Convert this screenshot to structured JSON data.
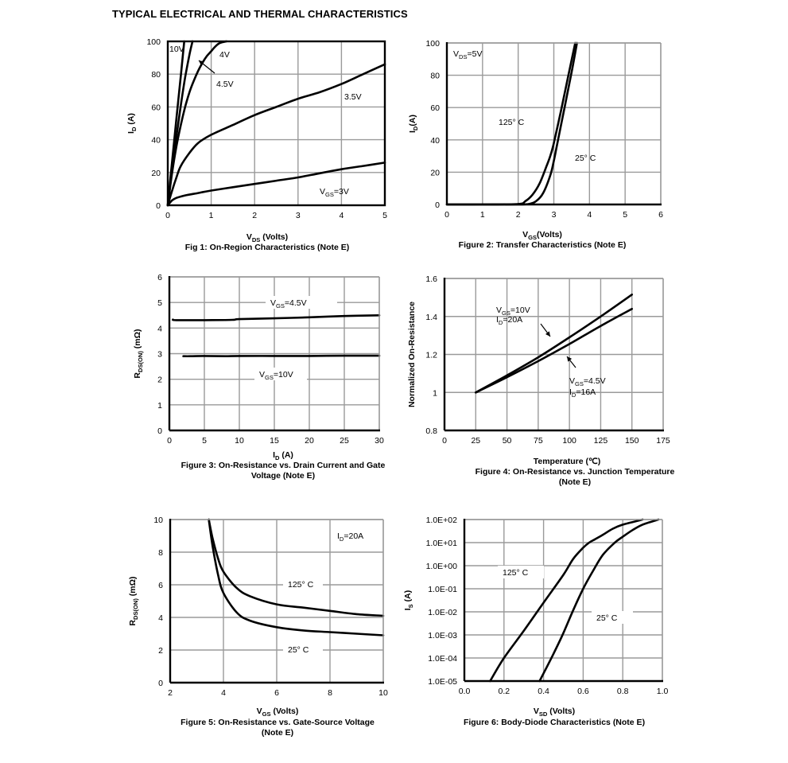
{
  "page": {
    "title": "TYPICAL ELECTRICAL AND THERMAL CHARACTERISTICS"
  },
  "chart_data": [
    {
      "id": "fig1",
      "type": "line",
      "caption": "Fig 1: On-Region Characteristics (Note E)",
      "xlabel": {
        "main": "V",
        "sub": "DS",
        "rest": " (Volts)"
      },
      "ylabel": {
        "main": "I",
        "sub": "D",
        "rest": " (A)"
      },
      "xlim": [
        0,
        5
      ],
      "ylim": [
        0,
        100
      ],
      "xticks": [
        "0",
        "1",
        "2",
        "3",
        "4",
        "5"
      ],
      "yticks": [
        "0",
        "20",
        "40",
        "60",
        "80",
        "100"
      ],
      "series": [
        {
          "name": "10V",
          "x": [
            0,
            0.1,
            0.2,
            0.3,
            0.38
          ],
          "y": [
            0,
            27,
            53,
            79,
            100
          ]
        },
        {
          "name": "4.5V",
          "x": [
            0,
            0.1,
            0.2,
            0.3,
            0.4,
            0.5,
            0.57
          ],
          "y": [
            0,
            22,
            42,
            61,
            78,
            92,
            100
          ]
        },
        {
          "name": "4V",
          "x": [
            0,
            0.1,
            0.2,
            0.3,
            0.4,
            0.5,
            0.6,
            0.7,
            0.8,
            0.9,
            1.0,
            1.1,
            1.2,
            1.35
          ],
          "y": [
            0,
            20,
            36,
            49,
            60,
            69,
            76,
            82,
            87,
            91,
            94,
            97,
            99,
            100.5
          ]
        },
        {
          "name": "3.5V",
          "x": [
            0,
            0.1,
            0.2,
            0.3,
            0.5,
            0.7,
            1.0,
            1.5,
            2.0,
            2.5,
            3.0,
            3.5,
            4.0,
            4.5,
            5.0
          ],
          "y": [
            0,
            9,
            17,
            24,
            32,
            38,
            43,
            49,
            55,
            60,
            65,
            69,
            74,
            80,
            86
          ]
        },
        {
          "name": "VGS=3V",
          "x": [
            0,
            0.1,
            0.2,
            0.4,
            0.7,
            1.0,
            1.5,
            2.0,
            2.5,
            3.0,
            3.5,
            4.0,
            4.5,
            5.0
          ],
          "y": [
            0,
            3,
            4.5,
            6,
            7.5,
            9,
            11,
            13,
            15,
            17,
            19.5,
            22,
            24,
            26
          ]
        }
      ],
      "annotations": [
        {
          "text": "10V"
        },
        {
          "text": "4V"
        },
        {
          "text": "4.5V"
        },
        {
          "text": "3.5V"
        },
        {
          "main": "V",
          "sub": "GS",
          "rest": "=3V"
        }
      ]
    },
    {
      "id": "fig2",
      "type": "line",
      "caption": "Figure 2: Transfer Characteristics (Note E)",
      "xlabel": {
        "main": "V",
        "sub": "GS",
        "rest": "(Volts)"
      },
      "ylabel": {
        "main": "I",
        "sub": "D",
        "rest": "(A)"
      },
      "xlim": [
        0,
        6
      ],
      "ylim": [
        0,
        100
      ],
      "xticks": [
        "0",
        "1",
        "2",
        "3",
        "4",
        "5",
        "6"
      ],
      "yticks": [
        "0",
        "20",
        "40",
        "60",
        "80",
        "100"
      ],
      "series": [
        {
          "name": "125° C",
          "x": [
            0,
            1,
            2.0,
            2.2,
            2.4,
            2.6,
            2.8,
            2.9,
            3.0,
            3.2,
            3.4,
            3.6
          ],
          "y": [
            0,
            0,
            0.3,
            2,
            6,
            13,
            24,
            30,
            38,
            58,
            79,
            100
          ]
        },
        {
          "name": "25° C",
          "x": [
            0,
            1,
            2.0,
            2.3,
            2.5,
            2.7,
            2.9,
            3.0,
            3.1,
            3.3,
            3.5,
            3.65
          ],
          "y": [
            0,
            0,
            0,
            0.3,
            2,
            7,
            18,
            27,
            38,
            60,
            82,
            100
          ]
        }
      ],
      "annotations": [
        {
          "main": "V",
          "sub": "DS",
          "rest": "=5V"
        },
        {
          "text": "125° C"
        },
        {
          "text": "25° C"
        }
      ]
    },
    {
      "id": "fig3",
      "type": "line",
      "caption": [
        "Figure 3: On-Resistance vs. Drain Current and Gate",
        "Voltage (Note E)"
      ],
      "xlabel": {
        "main": "I",
        "sub": "D",
        "rest": " (A)"
      },
      "ylabel": {
        "main": "R",
        "sub": "DS(ON)",
        "rest": " (mΩ)"
      },
      "xlim": [
        0,
        30
      ],
      "ylim": [
        0,
        6
      ],
      "xticks": [
        "0",
        "5",
        "10",
        "15",
        "20",
        "25",
        "30"
      ],
      "yticks": [
        "0",
        "1",
        "2",
        "3",
        "4",
        "5",
        "6"
      ],
      "series": [
        {
          "name": "VGS=4.5V",
          "x": [
            0.5,
            1,
            5,
            9,
            10,
            15,
            20,
            25,
            30
          ],
          "y": [
            4.33,
            4.31,
            4.31,
            4.32,
            4.35,
            4.38,
            4.42,
            4.47,
            4.5
          ]
        },
        {
          "name": "VGS=10V",
          "x": [
            2,
            3,
            5,
            8,
            10,
            15,
            20,
            25,
            30
          ],
          "y": [
            2.9,
            2.9,
            2.91,
            2.9,
            2.91,
            2.91,
            2.91,
            2.92,
            2.92
          ]
        }
      ],
      "annotations": [
        {
          "main": "V",
          "sub": "GS",
          "rest": "=4.5V"
        },
        {
          "main": "V",
          "sub": "GS",
          "rest": "=10V"
        }
      ]
    },
    {
      "id": "fig4",
      "type": "line",
      "caption": [
        "Figure 4: On-Resistance vs. Junction Temperature",
        "(Note E)"
      ],
      "xlabel": {
        "text": "Temperature (℃)"
      },
      "ylabel": {
        "text": "Normalized On-Resistance"
      },
      "xlim": [
        0,
        175
      ],
      "ylim": [
        0.8,
        1.6
      ],
      "xticks": [
        "0",
        "25",
        "50",
        "75",
        "100",
        "125",
        "150",
        "175"
      ],
      "yticks": [
        "0.8",
        "1",
        "1.2",
        "1.4",
        "1.6"
      ],
      "series": [
        {
          "name": "VGS=10V ID=20A",
          "x": [
            25,
            50,
            75,
            100,
            125,
            150
          ],
          "y": [
            1.0,
            1.09,
            1.185,
            1.29,
            1.4,
            1.515
          ]
        },
        {
          "name": "VGS=4.5V ID=16A",
          "x": [
            25,
            50,
            75,
            100,
            125,
            150
          ],
          "y": [
            1.0,
            1.08,
            1.165,
            1.255,
            1.35,
            1.44
          ]
        }
      ],
      "annotations": [
        {
          "main": "V",
          "sub": "GS",
          "rest": "=10V"
        },
        {
          "main": "I",
          "sub": "D",
          "rest": "=20A"
        },
        {
          "main": "V",
          "sub": "GS",
          "rest": "=4.5V"
        },
        {
          "main": "I",
          "sub": "D",
          "rest": "=16A"
        }
      ]
    },
    {
      "id": "fig5",
      "type": "line",
      "caption": [
        "Figure 5: On-Resistance vs. Gate-Source Voltage",
        "(Note E)"
      ],
      "xlabel": {
        "main": "V",
        "sub": "GS",
        "rest": " (Volts)"
      },
      "ylabel": {
        "main": "R",
        "sub": "DS(ON)",
        "rest": " (mΩ)"
      },
      "xlim": [
        2,
        10
      ],
      "ylim": [
        0,
        10
      ],
      "xticks": [
        "2",
        "4",
        "6",
        "8",
        "10"
      ],
      "yticks": [
        "0",
        "2",
        "4",
        "6",
        "8",
        "10"
      ],
      "series": [
        {
          "name": "125° C",
          "x": [
            3.45,
            3.6,
            3.8,
            4.0,
            4.5,
            5.0,
            6.0,
            7.0,
            8.0,
            9.0,
            10.0
          ],
          "y": [
            10,
            8.8,
            7.6,
            6.8,
            5.8,
            5.3,
            4.8,
            4.6,
            4.4,
            4.2,
            4.1
          ]
        },
        {
          "name": "25° C",
          "x": [
            3.45,
            3.6,
            3.8,
            4.0,
            4.5,
            5.0,
            6.0,
            7.0,
            8.0,
            9.0,
            10.0
          ],
          "y": [
            10,
            8.3,
            6.6,
            5.5,
            4.3,
            3.8,
            3.4,
            3.2,
            3.1,
            3.0,
            2.9
          ]
        }
      ],
      "annotations": [
        {
          "main": "I",
          "sub": "D",
          "rest": "=20A"
        },
        {
          "text": "125° C"
        },
        {
          "text": "25° C"
        }
      ]
    },
    {
      "id": "fig6",
      "type": "line",
      "yscale": "log",
      "caption": "Figure 6: Body-Diode Characteristics (Note E)",
      "xlabel": {
        "main": "V",
        "sub": "SD",
        "rest": " (Volts)"
      },
      "ylabel": {
        "main": "I",
        "sub": "S",
        "rest": " (A)"
      },
      "xlim": [
        0,
        1.0
      ],
      "ylim": [
        1e-05,
        100.0
      ],
      "xticks": [
        "0.0",
        "0.2",
        "0.4",
        "0.6",
        "0.8",
        "1.0"
      ],
      "yticks": [
        "1.0E-05",
        "1.0E-04",
        "1.0E-03",
        "1.0E-02",
        "1.0E-01",
        "1.0E+00",
        "1.0E+01",
        "1.0E+02"
      ],
      "series": [
        {
          "name": "125° C",
          "x": [
            0.13,
            0.2,
            0.3,
            0.4,
            0.5,
            0.55,
            0.6,
            0.63,
            0.66,
            0.7,
            0.75,
            0.8,
            0.9
          ],
          "y": [
            1e-05,
            0.0001,
            0.0015,
            0.025,
            0.4,
            2,
            6,
            10,
            14,
            22,
            40,
            60,
            100
          ]
        },
        {
          "name": "25° C",
          "x": [
            0.38,
            0.45,
            0.5,
            0.55,
            0.6,
            0.65,
            0.7,
            0.76,
            0.8,
            0.85,
            0.9,
            0.98
          ],
          "y": [
            1e-05,
            0.00015,
            0.0012,
            0.012,
            0.1,
            0.6,
            3,
            10,
            18,
            35,
            60,
            100
          ]
        }
      ],
      "annotations": [
        {
          "text": "125° C"
        },
        {
          "text": "25° C"
        }
      ]
    }
  ]
}
